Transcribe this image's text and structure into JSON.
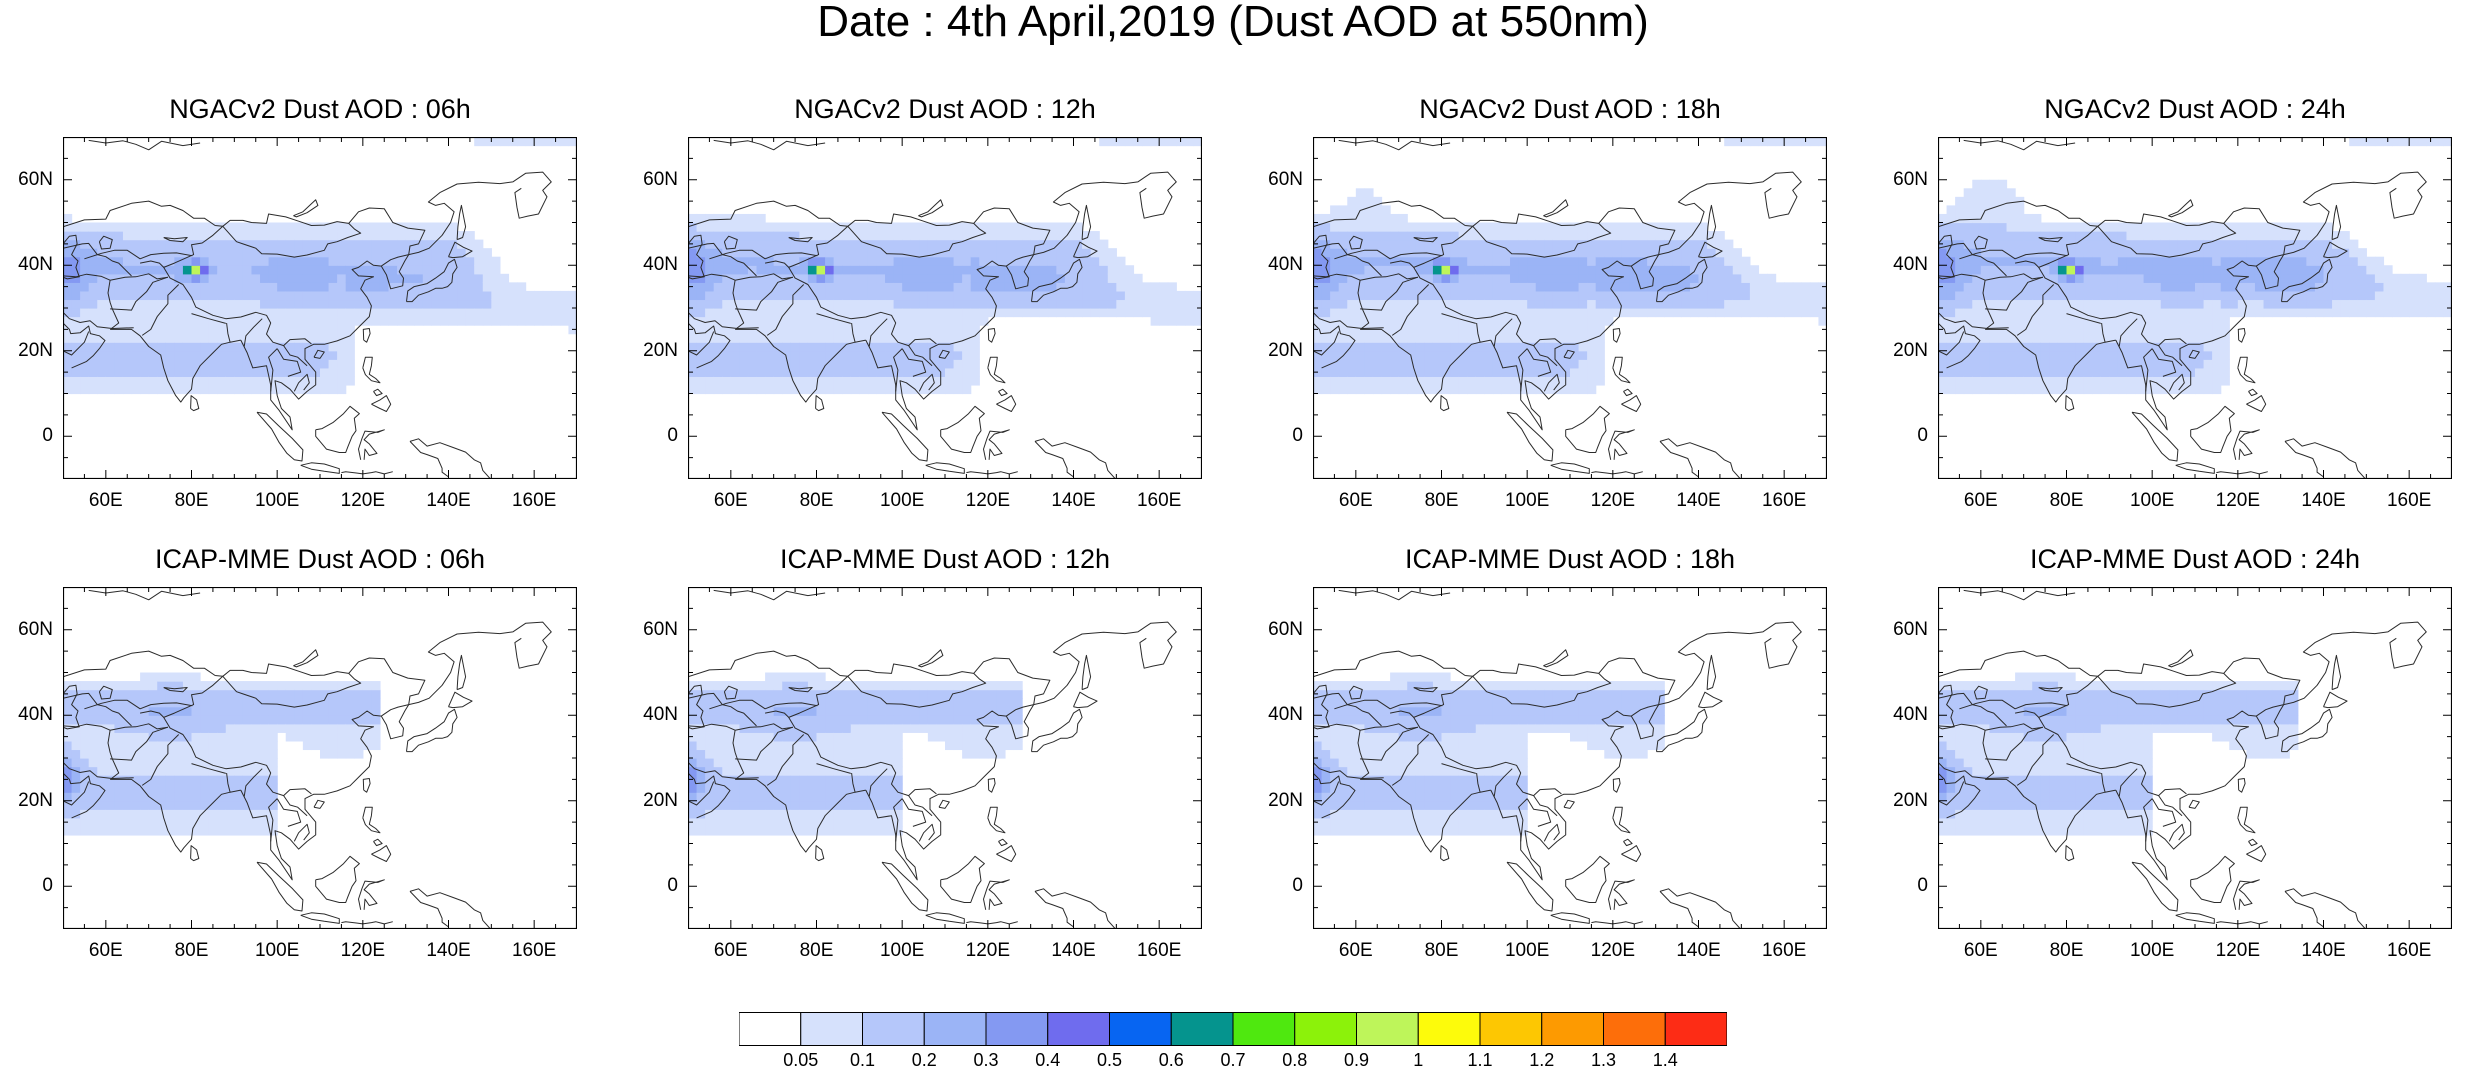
{
  "figure": {
    "title": "Date : 4th April,2019 (Dust AOD at 550nm)"
  },
  "map": {
    "lon_range": [
      50,
      170
    ],
    "lat_range": [
      -10,
      70
    ],
    "lon_ticks": [
      60,
      80,
      100,
      120,
      140,
      160
    ],
    "lon_tick_labels": [
      "60E",
      "80E",
      "100E",
      "120E",
      "140E",
      "160E"
    ],
    "lat_ticks": [
      0,
      20,
      40,
      60
    ],
    "lat_tick_labels": [
      "0",
      "20N",
      "40N",
      "60N"
    ]
  },
  "panels": [
    {
      "title": "NGACv2 Dust AOD : 06h",
      "model": "NGACv2",
      "lead": 6
    },
    {
      "title": "NGACv2 Dust AOD : 12h",
      "model": "NGACv2",
      "lead": 12
    },
    {
      "title": "NGACv2 Dust AOD : 18h",
      "model": "NGACv2",
      "lead": 18
    },
    {
      "title": "NGACv2 Dust AOD : 24h",
      "model": "NGACv2",
      "lead": 24
    },
    {
      "title": "ICAP-MME Dust AOD : 06h",
      "model": "ICAP-MME",
      "lead": 6
    },
    {
      "title": "ICAP-MME Dust AOD : 12h",
      "model": "ICAP-MME",
      "lead": 12
    },
    {
      "title": "ICAP-MME Dust AOD : 18h",
      "model": "ICAP-MME",
      "lead": 18
    },
    {
      "title": "ICAP-MME Dust AOD : 24h",
      "model": "ICAP-MME",
      "lead": 24
    }
  ],
  "colorbar": {
    "levels": [
      "0.05",
      "0.1",
      "0.2",
      "0.3",
      "0.4",
      "0.5",
      "0.6",
      "0.7",
      "0.8",
      "0.9",
      "1",
      "1.1",
      "1.2",
      "1.3",
      "1.4"
    ],
    "colors": [
      "#ffffff",
      "#d6e1fc",
      "#b5c7fa",
      "#9bb4f6",
      "#8499f2",
      "#6f6cee",
      "#0765f2",
      "#05948e",
      "#4fe80f",
      "#8cf20a",
      "#bef55a",
      "#fdfb0b",
      "#fdc702",
      "#fd9a01",
      "#fd6e0a",
      "#fd2c15"
    ]
  }
}
